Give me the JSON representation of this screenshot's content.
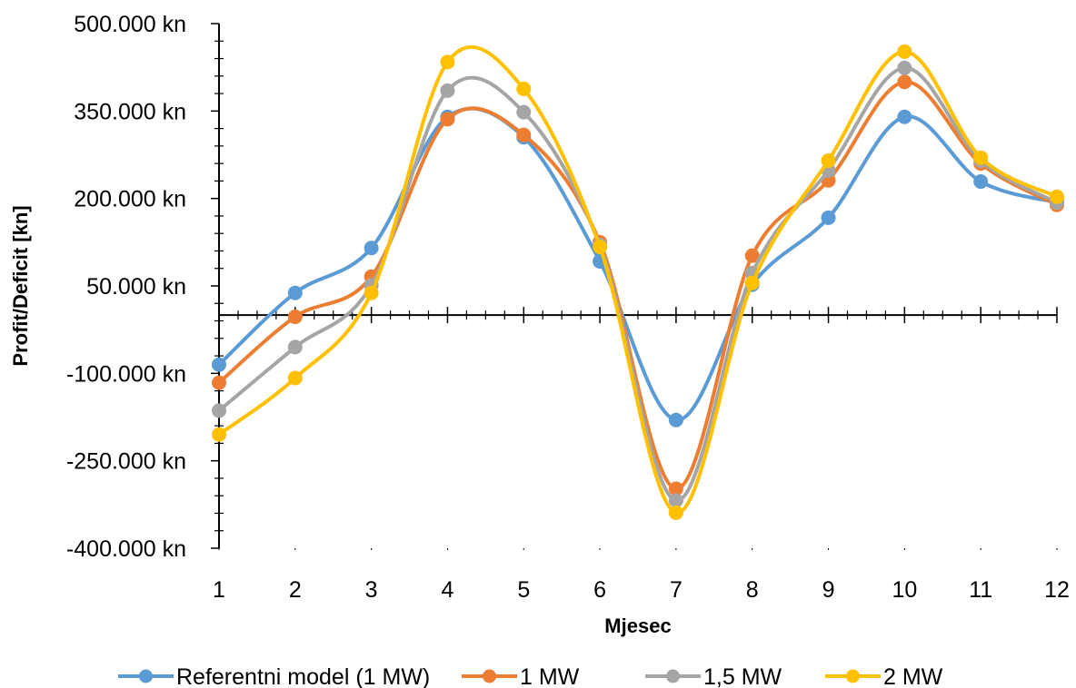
{
  "chart_data": {
    "type": "line",
    "smooth": true,
    "markers": "circle",
    "categories": [
      "1",
      "2",
      "3",
      "4",
      "5",
      "6",
      "7",
      "8",
      "9",
      "10",
      "11",
      "12"
    ],
    "xlabel": "Mjesec",
    "ylabel": "Profit/Deficit [kn]",
    "ylim": [
      -400000,
      500000
    ],
    "yticks": [
      -400000,
      -250000,
      -100000,
      50000,
      200000,
      350000,
      500000
    ],
    "ytick_labels": [
      "-400.000 kn",
      "-250.000 kn",
      "-100.000 kn",
      "50.000 kn",
      "200.000 kn",
      "350.000 kn",
      "500.000 kn"
    ],
    "grid": false,
    "legend_position": "bottom",
    "series": [
      {
        "name": "Referentni model (1 MW)",
        "color": "#5B9BD5",
        "values": [
          -85000,
          38000,
          115000,
          340000,
          305000,
          92000,
          -180000,
          52000,
          167000,
          340000,
          229000,
          193000
        ]
      },
      {
        "name": "1 MW",
        "color": "#ED7D31",
        "values": [
          -116000,
          -3000,
          66000,
          336000,
          309000,
          125000,
          -298000,
          102000,
          231000,
          400000,
          260000,
          189000
        ]
      },
      {
        "name": "1,5 MW",
        "color": "#A5A5A5",
        "values": [
          -164000,
          -55000,
          51000,
          385000,
          348000,
          120000,
          -318000,
          72000,
          248000,
          424000,
          265000,
          193000
        ]
      },
      {
        "name": "2 MW",
        "color": "#FFC000",
        "values": [
          -205000,
          -108000,
          38000,
          434000,
          388000,
          117000,
          -339000,
          55000,
          265000,
          452000,
          270000,
          203000
        ]
      }
    ]
  }
}
